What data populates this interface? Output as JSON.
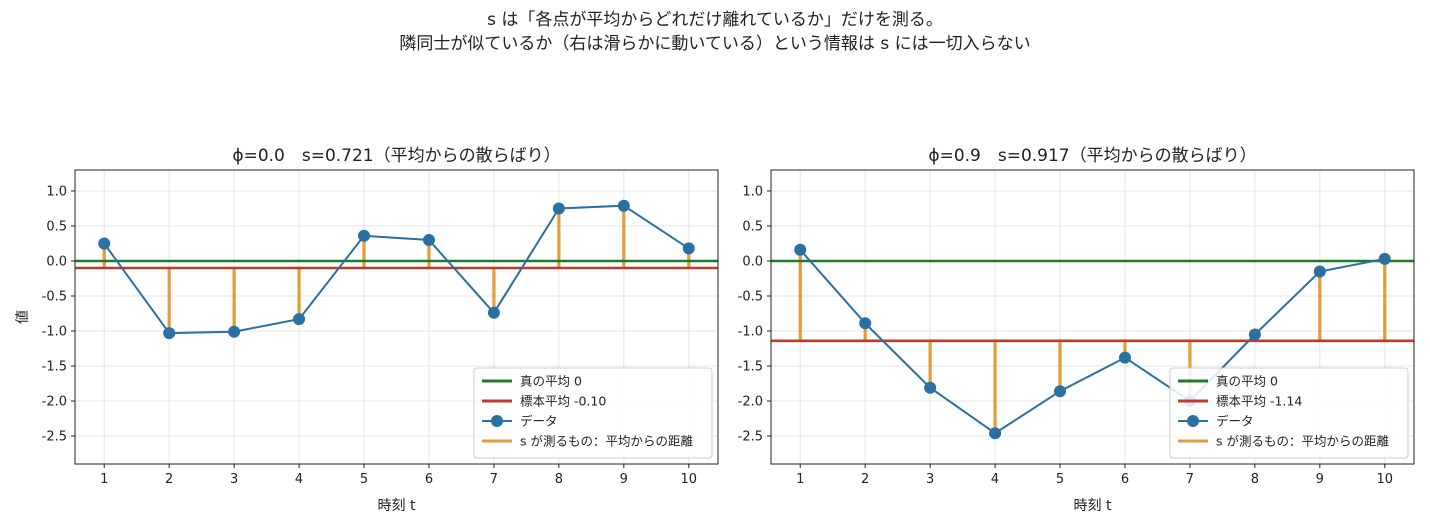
{
  "suptitle": {
    "line1": "s は「各点が平均からどれだけ離れているか」だけを測る。",
    "line2": "隣同士が似ているか（右は滑らかに動いている）という情報は s には一切入らない"
  },
  "colors": {
    "data": "#2a70a0",
    "true_mean": "#1f7a2e",
    "sample_mean": "#c0392b",
    "deviation": "#e39b3c",
    "grid": "#e5e5e5"
  },
  "chart_data": [
    {
      "type": "line",
      "title": "ϕ=0.0　s=0.721（平均からの散らばり）",
      "xlabel": "時刻 t",
      "ylabel": "値",
      "xlim": [
        0.55,
        10.45
      ],
      "ylim": [
        -2.9,
        1.3
      ],
      "xticks": [
        1,
        2,
        3,
        4,
        5,
        6,
        7,
        8,
        9,
        10
      ],
      "yticks": [
        1.0,
        0.5,
        0.0,
        -0.5,
        -1.0,
        -1.5,
        -2.0,
        -2.5
      ],
      "ytick_labels": [
        "1.0",
        "0.5",
        "0.0",
        "-0.5",
        "-1.0",
        "-1.5",
        "-2.0",
        "-2.5"
      ],
      "grid": true,
      "legend_position": "lower-right",
      "x": [
        1,
        2,
        3,
        4,
        5,
        6,
        7,
        8,
        9,
        10
      ],
      "y": [
        0.25,
        -1.03,
        -1.01,
        -0.83,
        0.36,
        0.3,
        -0.74,
        0.75,
        0.79,
        0.18
      ],
      "true_mean": 0,
      "sample_mean": -0.1,
      "legend": [
        "真の平均 0",
        "標本平均 -0.10",
        "データ",
        "s が測るもの：平均からの距離"
      ]
    },
    {
      "type": "line",
      "title": "ϕ=0.9　s=0.917（平均からの散らばり）",
      "xlabel": "時刻 t",
      "ylabel": "",
      "xlim": [
        0.55,
        10.45
      ],
      "ylim": [
        -2.9,
        1.3
      ],
      "xticks": [
        1,
        2,
        3,
        4,
        5,
        6,
        7,
        8,
        9,
        10
      ],
      "yticks": [
        1.0,
        0.5,
        0.0,
        -0.5,
        -1.0,
        -1.5,
        -2.0,
        -2.5
      ],
      "ytick_labels": [
        "1.0",
        "0.5",
        "0.0",
        "-0.5",
        "-1.0",
        "-1.5",
        "-2.0",
        "-2.5"
      ],
      "grid": true,
      "legend_position": "lower-right",
      "x": [
        1,
        2,
        3,
        4,
        5,
        6,
        7,
        8,
        9,
        10
      ],
      "y": [
        0.16,
        -0.89,
        -1.81,
        -2.46,
        -1.86,
        -1.38,
        -2.0,
        -1.05,
        -0.15,
        0.03
      ],
      "true_mean": 0,
      "sample_mean": -1.14,
      "legend": [
        "真の平均 0",
        "標本平均 -1.14",
        "データ",
        "s が測るもの：平均からの距離"
      ]
    }
  ]
}
